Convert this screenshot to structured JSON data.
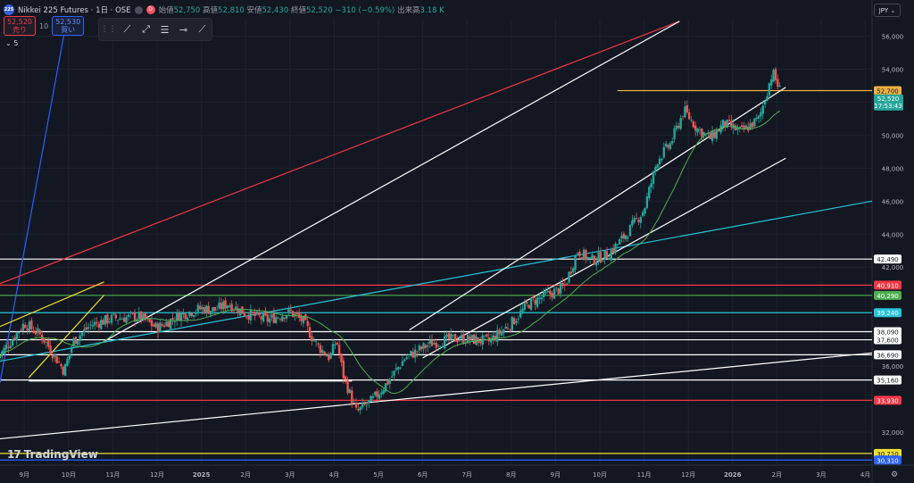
{
  "header": {
    "symbol_badge": "225",
    "title": "Nikkei 225 Futures · 1日 · OSE",
    "dot_d": "D",
    "open_label": "始値",
    "open": "52,750",
    "high_label": "高値",
    "high": "52,810",
    "low_label": "安値",
    "low": "52,430",
    "close_label": "終値",
    "close": "52,520",
    "change": "−310 (−0.59%)",
    "volume_label": "出来高",
    "volume": "3.18 K"
  },
  "trade": {
    "sell_price": "52,520",
    "sell_label": "売り",
    "spread": "10",
    "buy_price": "52,530",
    "buy_label": "買い"
  },
  "interval_badge": "5",
  "currency": "JPY",
  "brand": "TradingView",
  "chart_data": {
    "type": "candlestick",
    "instrument": "Nikkei 225 Futures",
    "interval": "1日",
    "exchange": "OSE",
    "ylim": [
      30000,
      57000
    ],
    "y_ticks": [
      "56,000",
      "54,000",
      "52,000",
      "50,000",
      "48,000",
      "46,000",
      "44,000",
      "42,000",
      "36,000",
      "32,000"
    ],
    "x_ticks": [
      "9月",
      "10月",
      "11月",
      "12月",
      "2025",
      "2月",
      "3月",
      "4月",
      "5月",
      "6月",
      "7月",
      "8月",
      "9月",
      "10月",
      "11月",
      "12月",
      "2026",
      "2月",
      "3月",
      "4月"
    ],
    "x_tick_months": [
      0,
      1,
      2,
      3,
      4,
      5,
      6,
      7,
      8,
      9,
      10,
      11,
      12,
      13,
      14,
      15,
      16,
      17,
      18,
      19
    ],
    "x_range_months": [
      -0.55,
      19.15
    ],
    "price_path_months": [
      -0.6,
      0,
      0.4,
      0.9,
      1.1,
      1.5,
      2,
      2.6,
      3,
      3.5,
      4,
      4.3,
      4.6,
      5,
      5.5,
      6,
      6.3,
      6.6,
      6.9,
      7.05,
      7.2,
      7.5,
      7.85,
      8.2,
      8.6,
      9.2,
      9.8,
      10.5,
      11,
      11.4,
      11.8,
      12.2,
      12.5,
      12.8,
      13.2,
      13.6,
      14,
      14.3,
      14.6,
      14.9,
      15.2,
      15.5,
      15.8,
      16.2,
      16.6,
      16.9,
      17.1
    ],
    "price_path_values": [
      36500,
      38600,
      37800,
      35700,
      37500,
      38500,
      38900,
      39000,
      38300,
      39100,
      39500,
      39400,
      39800,
      39200,
      38800,
      39300,
      38700,
      37300,
      36500,
      37600,
      35500,
      33200,
      33900,
      35000,
      36500,
      37400,
      37700,
      37500,
      38600,
      39800,
      40300,
      40800,
      43000,
      42400,
      42800,
      44000,
      45500,
      48500,
      49500,
      51500,
      50400,
      49800,
      50700,
      50200,
      51000,
      53800,
      52520
    ],
    "horizontal_levels": [
      {
        "value": 52700,
        "label": "52,700",
        "color": "#f0b040",
        "start_month": 13.4
      },
      {
        "value": 42490,
        "label": "42,490",
        "color": "#ffffff"
      },
      {
        "value": 40910,
        "label": "40,910",
        "color": "#f23645"
      },
      {
        "value": 40290,
        "label": "40,290",
        "color": "#4caf50"
      },
      {
        "value": 39240,
        "label": "39,240",
        "color": "#26c6da"
      },
      {
        "value": 38090,
        "label": "38,090",
        "color": "#ffffff"
      },
      {
        "value": 37600,
        "label": "37,600",
        "color": "#ffffff"
      },
      {
        "value": 36690,
        "label": "36,690",
        "color": "#ffffff"
      },
      {
        "value": 35160,
        "label": "35,160",
        "color": "#ffffff"
      },
      {
        "value": 33930,
        "label": "33,930",
        "color": "#f23645"
      },
      {
        "value": 30710,
        "label": "30,710",
        "color": "#f0e130"
      },
      {
        "value": 30310,
        "label": "30,310",
        "color": "#2962ff"
      }
    ],
    "trend_lines": [
      {
        "color": "#2962ff",
        "from": [
          -0.55,
          35000
        ],
        "to": [
          0.95,
          56900
        ]
      },
      {
        "color": "#f23645",
        "from": [
          -0.55,
          41000
        ],
        "to": [
          14.8,
          56900
        ]
      },
      {
        "color": "#ffffff",
        "from": [
          1.8,
          37500
        ],
        "to": [
          14.8,
          56900
        ]
      },
      {
        "color": "#ffffff",
        "from": [
          -0.55,
          31600
        ],
        "to": [
          19.15,
          36800
        ]
      },
      {
        "color": "#26c6da",
        "from": [
          -0.55,
          36300
        ],
        "to": [
          19.15,
          46000
        ]
      },
      {
        "color": "#f0e130",
        "from": [
          -0.55,
          38400
        ],
        "to": [
          1.8,
          41100
        ]
      },
      {
        "color": "#f0e130",
        "from": [
          0.1,
          35300
        ],
        "to": [
          1.8,
          40300
        ]
      },
      {
        "color": "#ffffff",
        "from": [
          0.1,
          35100
        ],
        "to": [
          7.4,
          35100
        ]
      },
      {
        "color": "#ffffff",
        "from": [
          8.7,
          38200
        ],
        "to": [
          17.2,
          52900
        ]
      },
      {
        "color": "#ffffff",
        "from": [
          9.0,
          36500
        ],
        "to": [
          17.2,
          48600
        ]
      }
    ],
    "last_price": {
      "value": "52,520",
      "countdown": "17:53:43"
    }
  }
}
